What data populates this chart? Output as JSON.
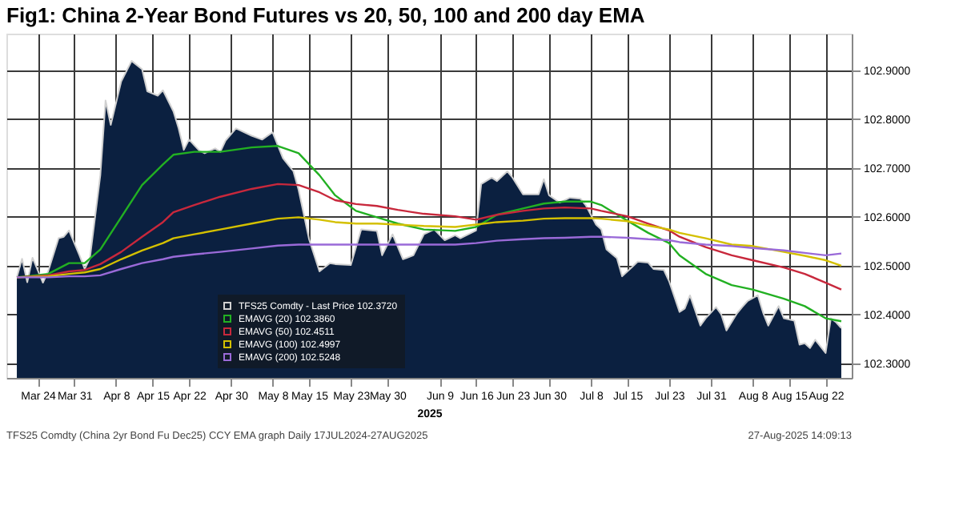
{
  "chart_data": {
    "type": "line",
    "title": "Fig1:  China 2-Year Bond Futures  vs 20, 50, 100 and 200 day EMA",
    "xlabel": "2025",
    "xlim": [
      "2025-03-18",
      "2025-08-27"
    ],
    "xticks": [
      {
        "value": "2025-03-24",
        "label": "Mar 24"
      },
      {
        "value": "2025-03-31",
        "label": "Mar 31"
      },
      {
        "value": "2025-04-08",
        "label": "Apr 8"
      },
      {
        "value": "2025-04-15",
        "label": "Apr 15"
      },
      {
        "value": "2025-04-22",
        "label": "Apr 22"
      },
      {
        "value": "2025-04-30",
        "label": "Apr 30"
      },
      {
        "value": "2025-05-08",
        "label": "May 8"
      },
      {
        "value": "2025-05-15",
        "label": "May 15"
      },
      {
        "value": "2025-05-23",
        "label": "May 23"
      },
      {
        "value": "2025-05-30",
        "label": "May 30"
      },
      {
        "value": "2025-06-09",
        "label": "Jun 9"
      },
      {
        "value": "2025-06-16",
        "label": "Jun 16"
      },
      {
        "value": "2025-06-23",
        "label": "Jun 23"
      },
      {
        "value": "2025-06-30",
        "label": "Jun 30"
      },
      {
        "value": "2025-07-08",
        "label": "Jul 8"
      },
      {
        "value": "2025-07-15",
        "label": "Jul 15"
      },
      {
        "value": "2025-07-23",
        "label": "Jul 23"
      },
      {
        "value": "2025-07-31",
        "label": "Jul 31"
      },
      {
        "value": "2025-08-08",
        "label": "Aug 8"
      },
      {
        "value": "2025-08-15",
        "label": "Aug 15"
      },
      {
        "value": "2025-08-22",
        "label": "Aug 22"
      }
    ],
    "ylim": [
      102.27,
      102.975
    ],
    "yticks": [
      {
        "value": 102.3,
        "label": "102.3000"
      },
      {
        "value": 102.4,
        "label": "102.4000"
      },
      {
        "value": 102.5,
        "label": "102.5000"
      },
      {
        "value": 102.6,
        "label": "102.6000"
      },
      {
        "value": 102.7,
        "label": "102.7000"
      },
      {
        "value": 102.8,
        "label": "102.8000"
      },
      {
        "value": 102.9,
        "label": "102.9000"
      }
    ],
    "grid": true,
    "legend": "bottom",
    "annotations": [
      "TFS25 Comdty (China 2yr Bond Fu Dec25) CCY EMA graph  Daily 17JUL2024-27AUG2025",
      "27-Aug-2025 14:09:13"
    ],
    "series": [
      {
        "name": "TFS25 Comdty - Last Price  102.3720",
        "type": "area",
        "color": "#d0d0d0",
        "x": [
          "2025-03-20",
          "2025-03-21",
          "2025-03-22",
          "2025-03-23",
          "2025-03-25",
          "2025-03-26",
          "2025-03-28",
          "2025-03-29",
          "2025-03-30",
          "2025-04-01",
          "2025-04-02",
          "2025-04-03",
          "2025-04-05",
          "2025-04-06",
          "2025-04-07",
          "2025-04-09",
          "2025-04-11",
          "2025-04-13",
          "2025-04-14",
          "2025-04-16",
          "2025-04-17",
          "2025-04-19",
          "2025-04-20",
          "2025-04-21",
          "2025-04-22",
          "2025-04-24",
          "2025-04-25",
          "2025-04-27",
          "2025-04-28",
          "2025-04-29",
          "2025-05-01",
          "2025-05-04",
          "2025-05-06",
          "2025-05-08",
          "2025-05-10",
          "2025-05-12",
          "2025-05-13",
          "2025-05-15",
          "2025-05-17",
          "2025-05-19",
          "2025-05-20",
          "2025-05-23",
          "2025-05-25",
          "2025-05-28",
          "2025-05-29",
          "2025-05-31",
          "2025-06-02",
          "2025-06-04",
          "2025-06-06",
          "2025-06-08",
          "2025-06-10",
          "2025-06-12",
          "2025-06-13",
          "2025-06-16",
          "2025-06-17",
          "2025-06-19",
          "2025-06-20",
          "2025-06-22",
          "2025-06-23",
          "2025-06-25",
          "2025-06-28",
          "2025-06-29",
          "2025-06-30",
          "2025-07-02",
          "2025-07-04",
          "2025-07-06",
          "2025-07-07",
          "2025-07-09",
          "2025-07-10",
          "2025-07-11",
          "2025-07-13",
          "2025-07-14",
          "2025-07-16",
          "2025-07-17",
          "2025-07-19",
          "2025-07-20",
          "2025-07-22",
          "2025-07-23",
          "2025-07-25",
          "2025-07-26",
          "2025-07-27",
          "2025-07-29",
          "2025-07-30",
          "2025-08-01",
          "2025-08-02",
          "2025-08-03",
          "2025-08-05",
          "2025-08-06",
          "2025-08-07",
          "2025-08-09",
          "2025-08-10",
          "2025-08-11",
          "2025-08-13",
          "2025-08-14",
          "2025-08-16",
          "2025-08-17",
          "2025-08-18",
          "2025-08-19",
          "2025-08-20",
          "2025-08-22",
          "2025-08-23",
          "2025-08-24",
          "2025-08-25"
        ],
        "values": [
          102.476,
          102.514,
          102.466,
          102.516,
          102.465,
          102.488,
          102.556,
          102.559,
          102.572,
          102.521,
          102.493,
          102.515,
          102.685,
          102.838,
          102.788,
          102.877,
          102.919,
          102.902,
          102.857,
          102.848,
          102.859,
          102.816,
          102.781,
          102.737,
          102.758,
          102.735,
          102.73,
          102.74,
          102.733,
          102.756,
          102.781,
          102.766,
          102.758,
          102.773,
          102.72,
          102.693,
          102.655,
          102.554,
          102.488,
          102.505,
          102.503,
          102.501,
          102.574,
          102.571,
          102.521,
          102.564,
          102.513,
          102.521,
          102.564,
          102.574,
          102.552,
          102.562,
          102.556,
          102.572,
          102.667,
          102.68,
          102.673,
          102.693,
          102.68,
          102.646,
          102.646,
          102.677,
          102.644,
          102.629,
          102.639,
          102.637,
          102.624,
          102.584,
          102.574,
          102.533,
          102.515,
          102.478,
          102.498,
          102.508,
          102.506,
          102.493,
          102.491,
          102.468,
          102.405,
          102.412,
          102.439,
          102.377,
          102.392,
          102.415,
          102.4,
          102.367,
          102.402,
          102.415,
          102.427,
          102.439,
          102.404,
          102.377,
          102.417,
          102.392,
          102.387,
          102.338,
          102.341,
          102.331,
          102.348,
          102.321,
          102.392,
          102.384,
          102.372
        ]
      },
      {
        "name": "EMAVG (20)  102.3860",
        "color": "#22b022",
        "values": [
          102.476,
          102.483,
          102.505,
          102.505,
          102.533,
          102.599,
          102.665,
          102.707,
          102.727,
          102.733,
          102.733,
          102.742,
          102.745,
          102.73,
          102.685,
          102.644,
          102.612,
          102.599,
          102.586,
          102.574,
          102.571,
          102.579,
          102.604,
          102.617,
          102.627,
          102.631,
          102.631,
          102.624,
          102.592,
          102.567,
          102.546,
          102.521,
          102.483,
          102.46,
          102.451,
          102.432,
          102.417,
          102.392,
          102.386
        ]
      },
      {
        "name": "EMAVG (50)  102.4511",
        "color": "#c8283c",
        "values": [
          102.476,
          102.48,
          102.488,
          102.491,
          102.503,
          102.528,
          102.559,
          102.589,
          102.609,
          102.624,
          102.641,
          102.657,
          102.667,
          102.665,
          102.65,
          102.634,
          102.626,
          102.622,
          102.614,
          102.606,
          102.601,
          102.594,
          102.604,
          102.612,
          102.617,
          102.619,
          102.617,
          102.612,
          102.601,
          102.586,
          102.572,
          102.559,
          102.538,
          102.521,
          102.511,
          102.496,
          102.483,
          102.465,
          102.4511
        ]
      },
      {
        "name": "EMAVG (100)  102.4997",
        "color": "#d4c000",
        "values": [
          102.476,
          102.478,
          102.483,
          102.486,
          102.493,
          102.513,
          102.531,
          102.546,
          102.556,
          102.564,
          102.574,
          102.586,
          102.596,
          102.599,
          102.594,
          102.589,
          102.586,
          102.586,
          102.584,
          102.581,
          102.579,
          102.584,
          102.589,
          102.592,
          102.596,
          102.597,
          102.597,
          102.596,
          102.591,
          102.582,
          102.574,
          102.567,
          102.556,
          102.543,
          102.54,
          102.528,
          102.52,
          102.511,
          102.4997
        ]
      },
      {
        "name": "EMAVG (200)  102.5248",
        "color": "#9a6ad8",
        "values": [
          102.476,
          102.476,
          102.478,
          102.478,
          102.48,
          102.493,
          102.505,
          102.513,
          102.518,
          102.523,
          102.528,
          102.535,
          102.541,
          102.543,
          102.543,
          102.543,
          102.543,
          102.543,
          102.543,
          102.543,
          102.543,
          102.546,
          102.551,
          102.554,
          102.556,
          102.557,
          102.559,
          102.559,
          102.557,
          102.554,
          102.552,
          102.548,
          102.543,
          102.54,
          102.536,
          102.531,
          102.526,
          102.521,
          102.5248
        ]
      }
    ],
    "x": [
      "2025-03-20",
      "2025-03-26",
      "2025-03-30",
      "2025-04-02",
      "2025-04-05",
      "2025-04-09",
      "2025-04-13",
      "2025-04-17",
      "2025-04-19",
      "2025-04-23",
      "2025-04-28",
      "2025-05-04",
      "2025-05-09",
      "2025-05-13",
      "2025-05-17",
      "2025-05-20",
      "2025-05-24",
      "2025-05-28",
      "2025-06-01",
      "2025-06-06",
      "2025-06-12",
      "2025-06-16",
      "2025-06-20",
      "2025-06-25",
      "2025-06-29",
      "2025-07-03",
      "2025-07-08",
      "2025-07-10",
      "2025-07-15",
      "2025-07-19",
      "2025-07-23",
      "2025-07-25",
      "2025-07-30",
      "2025-08-04",
      "2025-08-08",
      "2025-08-14",
      "2025-08-18",
      "2025-08-22",
      "2025-08-25"
    ]
  }
}
